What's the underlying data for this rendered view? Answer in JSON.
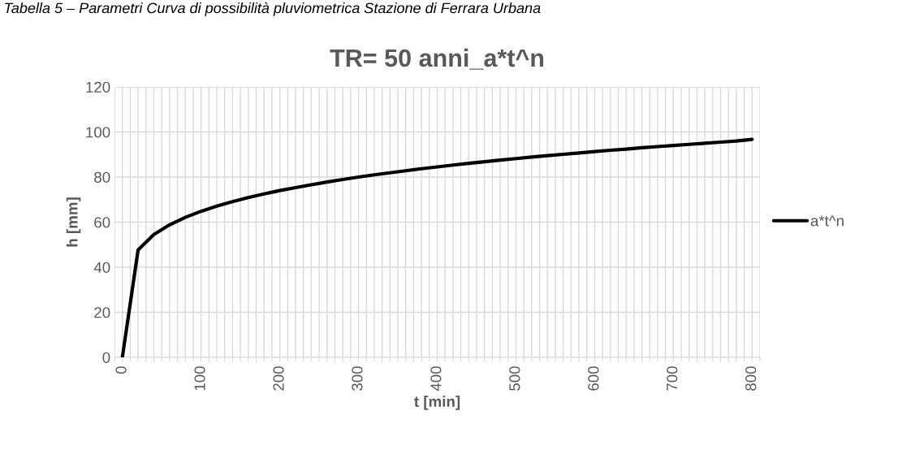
{
  "chart_data": {
    "type": "line",
    "title": "TR= 50 anni_a*t^n",
    "xlabel": "t [min]",
    "ylabel": "h [mm]",
    "annotations": [
      "Tabella 5 – Parametri Curva di possibilità pluviometrica Stazione di Ferrara Urbana"
    ],
    "x": [
      0,
      20,
      40,
      60,
      80,
      100,
      120,
      140,
      160,
      180,
      200,
      220,
      240,
      260,
      280,
      300,
      320,
      340,
      360,
      380,
      400,
      420,
      440,
      460,
      480,
      500,
      520,
      540,
      560,
      580,
      600,
      620,
      640,
      660,
      680,
      700,
      720,
      740,
      760,
      780,
      800
    ],
    "series": [
      {
        "name": "a*t^n",
        "color": "#000000",
        "values": [
          0,
          47.7,
          54.5,
          58.8,
          62.1,
          64.8,
          67.1,
          69.1,
          70.9,
          72.5,
          74.0,
          75.3,
          76.6,
          77.8,
          78.9,
          80.0,
          81.0,
          81.9,
          82.8,
          83.7,
          84.5,
          85.3,
          86.1,
          86.8,
          87.5,
          88.2,
          88.9,
          89.5,
          90.1,
          90.7,
          91.3,
          91.9,
          92.4,
          93.0,
          93.5,
          94.0,
          94.5,
          95.0,
          95.5,
          96.0,
          96.7
        ]
      }
    ],
    "xlim": [
      -10,
      810
    ],
    "xticks": [
      {
        "value": -10,
        "label": null
      },
      0,
      {
        "value": 10,
        "label": null
      },
      {
        "value": 20,
        "label": null
      },
      {
        "value": 30,
        "label": null
      },
      {
        "value": 40,
        "label": null
      },
      {
        "value": 50,
        "label": null
      },
      {
        "value": 60,
        "label": null
      },
      {
        "value": 70,
        "label": null
      },
      {
        "value": 80,
        "label": null
      },
      {
        "value": 90,
        "label": null
      },
      100,
      {
        "value": 110,
        "label": null
      },
      {
        "value": 120,
        "label": null
      },
      {
        "value": 130,
        "label": null
      },
      {
        "value": 140,
        "label": null
      },
      {
        "value": 150,
        "label": null
      },
      {
        "value": 160,
        "label": null
      },
      {
        "value": 170,
        "label": null
      },
      {
        "value": 180,
        "label": null
      },
      {
        "value": 190,
        "label": null
      },
      200,
      {
        "value": 210,
        "label": null
      },
      {
        "value": 220,
        "label": null
      },
      {
        "value": 230,
        "label": null
      },
      {
        "value": 240,
        "label": null
      },
      {
        "value": 250,
        "label": null
      },
      {
        "value": 260,
        "label": null
      },
      {
        "value": 270,
        "label": null
      },
      {
        "value": 280,
        "label": null
      },
      {
        "value": 290,
        "label": null
      },
      300,
      {
        "value": 310,
        "label": null
      },
      {
        "value": 320,
        "label": null
      },
      {
        "value": 330,
        "label": null
      },
      {
        "value": 340,
        "label": null
      },
      {
        "value": 350,
        "label": null
      },
      {
        "value": 360,
        "label": null
      },
      {
        "value": 370,
        "label": null
      },
      {
        "value": 380,
        "label": null
      },
      {
        "value": 390,
        "label": null
      },
      400,
      {
        "value": 410,
        "label": null
      },
      {
        "value": 420,
        "label": null
      },
      {
        "value": 430,
        "label": null
      },
      {
        "value": 440,
        "label": null
      },
      {
        "value": 450,
        "label": null
      },
      {
        "value": 460,
        "label": null
      },
      {
        "value": 470,
        "label": null
      },
      {
        "value": 480,
        "label": null
      },
      {
        "value": 490,
        "label": null
      },
      500,
      {
        "value": 510,
        "label": null
      },
      {
        "value": 520,
        "label": null
      },
      {
        "value": 530,
        "label": null
      },
      {
        "value": 540,
        "label": null
      },
      {
        "value": 550,
        "label": null
      },
      {
        "value": 560,
        "label": null
      },
      {
        "value": 570,
        "label": null
      },
      {
        "value": 580,
        "label": null
      },
      {
        "value": 590,
        "label": null
      },
      600,
      {
        "value": 610,
        "label": null
      },
      {
        "value": 620,
        "label": null
      },
      {
        "value": 630,
        "label": null
      },
      {
        "value": 640,
        "label": null
      },
      {
        "value": 650,
        "label": null
      },
      {
        "value": 660,
        "label": null
      },
      {
        "value": 670,
        "label": null
      },
      {
        "value": 680,
        "label": null
      },
      {
        "value": 690,
        "label": null
      },
      700,
      {
        "value": 710,
        "label": null
      },
      {
        "value": 720,
        "label": null
      },
      {
        "value": 730,
        "label": null
      },
      {
        "value": 740,
        "label": null
      },
      {
        "value": 750,
        "label": null
      },
      {
        "value": 760,
        "label": null
      },
      {
        "value": 770,
        "label": null
      },
      {
        "value": 780,
        "label": null
      },
      {
        "value": 790,
        "label": null
      },
      800,
      {
        "value": 810,
        "label": null
      }
    ],
    "ylim": [
      0,
      120
    ],
    "yticks": [
      0,
      20,
      40,
      60,
      80,
      100,
      120
    ],
    "grid": true,
    "legend": "right",
    "marker": "none",
    "line_style": "solid"
  }
}
